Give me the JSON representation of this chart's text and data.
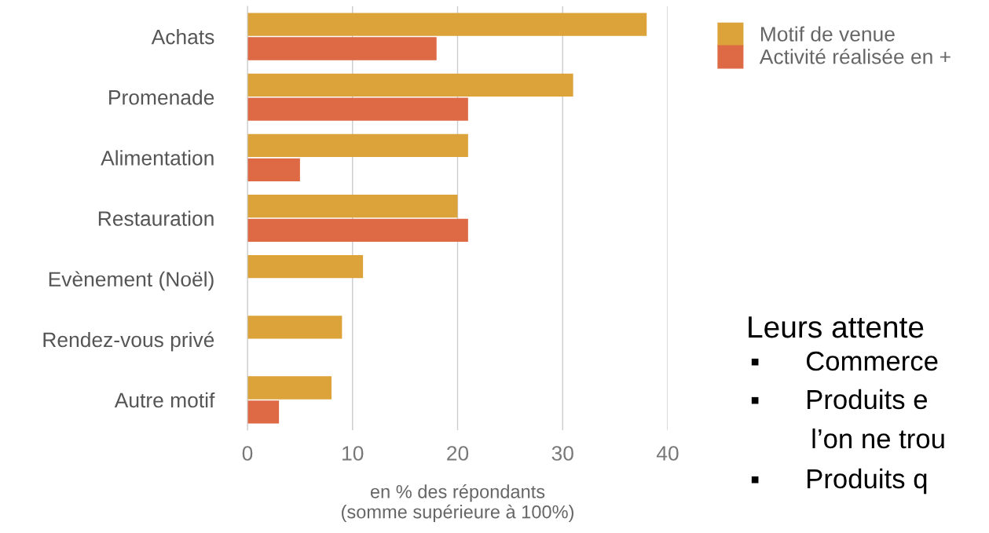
{
  "chart_data": {
    "type": "bar",
    "orientation": "horizontal",
    "categories": [
      "Achats",
      "Promenade",
      "Alimentation",
      "Restauration",
      "Evènement (Noël)",
      "Rendez-vous privé",
      "Autre motif"
    ],
    "series": [
      {
        "name": "Motif de venue",
        "color": "#dca33a",
        "values": [
          38,
          31,
          21,
          20,
          11,
          9,
          8
        ]
      },
      {
        "name": "Activité réalisée en +",
        "color": "#dd6a45",
        "values": [
          18,
          21,
          5,
          21,
          null,
          null,
          3
        ]
      }
    ],
    "xlim": [
      0,
      40
    ],
    "xticks": [
      0,
      10,
      20,
      30,
      40
    ],
    "xlabel": "en % des répondants\n(somme supérieure à 100%)",
    "grid": "x",
    "legend": "top right",
    "annotations": [
      "Leurs attente",
      "▪      Commerce",
      "▪      Produits e",
      "        l’on ne trou",
      "▪      Produits q"
    ]
  }
}
